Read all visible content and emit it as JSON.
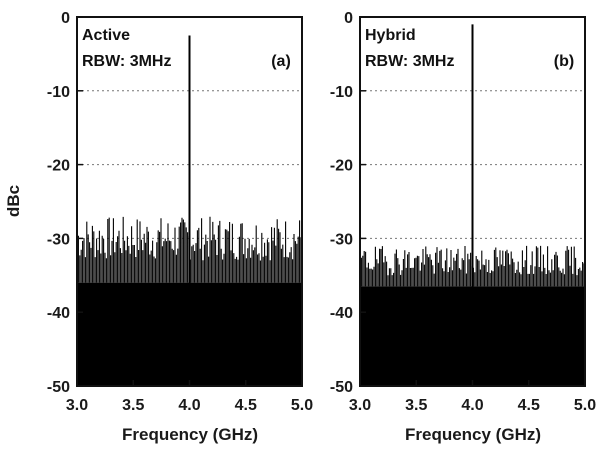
{
  "chart_data": [
    {
      "type": "bar",
      "panel_tag": "(a)",
      "labels": [
        "Active",
        "RBW: 3MHz"
      ],
      "xlabel": "Frequency (GHz)",
      "ylabel": "dBc",
      "xlim": [
        3.0,
        5.0
      ],
      "ylim": [
        -50,
        0
      ],
      "xticks": [
        "3.0",
        "3.5",
        "4.0",
        "4.5",
        "5.0"
      ],
      "yticks": [
        "0",
        "-10",
        "-20",
        "-30",
        "-40",
        "-50"
      ],
      "grid": "horizontal-dotted",
      "noise_floor_dBc": {
        "envelope_top": [
          -27,
          -33
        ],
        "solid_below": -36
      },
      "carrier": {
        "frequency_GHz": 4.0,
        "level_dBc": -2.5
      }
    },
    {
      "type": "bar",
      "panel_tag": "(b)",
      "labels": [
        "Hybrid",
        "RBW: 3MHz"
      ],
      "xlabel": "Frequency (GHz)",
      "ylabel": "",
      "xlim": [
        3.0,
        5.0
      ],
      "ylim": [
        -50,
        0
      ],
      "xticks": [
        "3.0",
        "3.5",
        "4.0",
        "4.5",
        "5.0"
      ],
      "yticks": [
        "0",
        "-10",
        "-20",
        "-30",
        "-40",
        "-50"
      ],
      "grid": "horizontal-dotted",
      "noise_floor_dBc": {
        "envelope_top": [
          -31,
          -35
        ],
        "solid_below": -36.5
      },
      "carrier": {
        "frequency_GHz": 4.0,
        "level_dBc": -1.0
      }
    }
  ]
}
